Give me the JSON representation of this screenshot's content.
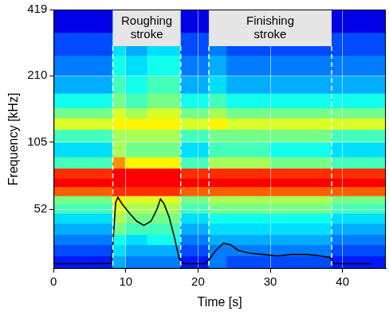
{
  "chart_data": {
    "type": "heatmap",
    "xlabel": "Time [s]",
    "ylabel": "Frequency [kHz]",
    "xlim": [
      0,
      46
    ],
    "xticks": [
      0,
      10,
      20,
      30,
      40
    ],
    "ylim": [
      28,
      419
    ],
    "yticks": [
      52,
      105,
      210,
      419
    ],
    "log": "y",
    "grid": true,
    "heatmap": {
      "x_edges": [
        0,
        8.2,
        10,
        13,
        15,
        17.6,
        21.5,
        24,
        30,
        38.5,
        46
      ],
      "y_edges": [
        28,
        32,
        36,
        40,
        45,
        50,
        55,
        60,
        66,
        72,
        80,
        90,
        105,
        120,
        135,
        150,
        175,
        210,
        260,
        330,
        419
      ],
      "cells": [
        [
          2,
          3.5,
          3,
          3,
          3,
          2,
          3,
          2.5,
          2.5,
          2
        ],
        [
          2.5,
          4,
          3.5,
          3.5,
          3.5,
          2.5,
          3,
          3,
          3,
          2.5
        ],
        [
          3,
          4.5,
          4,
          4.5,
          4.5,
          3,
          3.5,
          3.5,
          3.5,
          3
        ],
        [
          3.5,
          5.5,
          5,
          5,
          5,
          3.5,
          4,
          4,
          4,
          3.5
        ],
        [
          4,
          6,
          5.5,
          5.5,
          5.5,
          4,
          4.5,
          4.5,
          4.5,
          4
        ],
        [
          5,
          6.5,
          6,
          6,
          6,
          5,
          5.5,
          5.5,
          5.5,
          5
        ],
        [
          5.5,
          7,
          6.5,
          6.5,
          6.5,
          5.5,
          6,
          6,
          6,
          5.5
        ],
        [
          8.5,
          9,
          9,
          9,
          9,
          8.5,
          8.5,
          8.5,
          8.5,
          8.5
        ],
        [
          9.5,
          9.5,
          9.5,
          9.5,
          9.5,
          9.5,
          9.5,
          9.5,
          9.5,
          9.5
        ],
        [
          9,
          9.5,
          9.5,
          9.5,
          9.5,
          9,
          9,
          9,
          9,
          9
        ],
        [
          5,
          8,
          7,
          7,
          7,
          5,
          6,
          6,
          5.5,
          5
        ],
        [
          4,
          6,
          5.5,
          5.5,
          5.5,
          4,
          5,
          5,
          4.5,
          4
        ],
        [
          5,
          6,
          6,
          6,
          6,
          5,
          5.5,
          5.5,
          5.5,
          5
        ],
        [
          6.5,
          7,
          7,
          7,
          7,
          6.5,
          7,
          6.5,
          6.5,
          6.5
        ],
        [
          5.5,
          6.5,
          6,
          6.5,
          6.5,
          5.5,
          6,
          5.5,
          5.5,
          5.5
        ],
        [
          4.5,
          5.5,
          5,
          5.5,
          5.5,
          4.5,
          5,
          4.5,
          4.5,
          4.5
        ],
        [
          3.5,
          5,
          4.5,
          5,
          5,
          3.5,
          4,
          3.5,
          3.5,
          3.5
        ],
        [
          3,
          4.5,
          4,
          4.5,
          4.5,
          3,
          3.5,
          3,
          3,
          3
        ],
        [
          2.5,
          4,
          3.5,
          4,
          4,
          2.5,
          3,
          2.5,
          2.5,
          2.5
        ],
        [
          1.5,
          3,
          2.5,
          3,
          3,
          1.5,
          2,
          1.5,
          1.5,
          1.5
        ]
      ]
    },
    "series": [
      {
        "type": "line",
        "color": "#000000",
        "x": [
          0,
          4,
          8,
          8.3,
          8.6,
          8.9,
          9.5,
          10.5,
          11.5,
          12.5,
          13.5,
          14.3,
          14.8,
          15.3,
          16,
          16.8,
          17.4,
          18,
          21,
          21.6,
          22.5,
          23.5,
          24.5,
          25.5,
          27,
          29,
          31,
          33,
          35,
          37,
          38.3,
          38.8,
          42,
          44
        ],
        "values": [
          29.5,
          29.5,
          29.6,
          40,
          56,
          59,
          55,
          50,
          46,
          44,
          46,
          52,
          58,
          55,
          48,
          38,
          31,
          29.5,
          29.5,
          31,
          34,
          36.5,
          36,
          34,
          33,
          32.5,
          32,
          32.5,
          32.5,
          32,
          31.5,
          29.5,
          29.5,
          29.5
        ]
      }
    ],
    "annotations": [
      {
        "text": "Roughing stroke",
        "x_start": 8.2,
        "x_end": 17.6
      },
      {
        "text": "Finishing stroke",
        "x_start": 21.5,
        "x_end": 38.5
      }
    ]
  }
}
